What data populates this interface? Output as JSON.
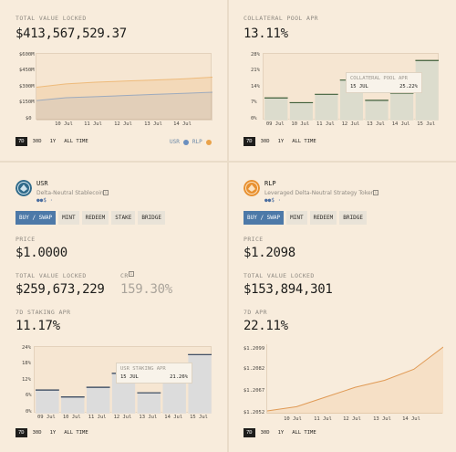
{
  "tvl": {
    "label": "TOTAL VALUE LOCKED",
    "value": "$413,567,529.37",
    "yticks": [
      "$600M",
      "$450M",
      "$300M",
      "$150M",
      "$0"
    ],
    "xticks": [
      "10 Jul",
      "11 Jul",
      "12 Jul",
      "13 Jul",
      "14 Jul"
    ],
    "legend": [
      "USR",
      "RLP"
    ],
    "periods": [
      "7D",
      "30D",
      "1Y",
      "ALL TIME"
    ],
    "colors": {
      "usr": "#6b8fbf",
      "rlp": "#e9a24a"
    }
  },
  "collateral": {
    "label": "COLLATERAL POOL APR",
    "value": "13.11%",
    "yticks": [
      "28%",
      "21%",
      "14%",
      "7%",
      "0%"
    ],
    "xticks": [
      "09 Jul",
      "10 Jul",
      "11 Jul",
      "12 Jul",
      "13 Jul",
      "14 Jul",
      "15 Jul"
    ],
    "tooltip": {
      "title": "COLLATERAL POOL APR",
      "date": "15 JUL",
      "value": "25.22%"
    },
    "periods": [
      "7D",
      "30D",
      "1Y",
      "ALL TIME"
    ]
  },
  "usr": {
    "name": "USR",
    "subtitle": "Delta-Neutral Stablecoin",
    "tabs": [
      "BUY / SWAP",
      "MINT",
      "REDEEM",
      "STAKE",
      "BRIDGE"
    ],
    "price_label": "PRICE",
    "price": "$1.0000",
    "tvl_label": "TOTAL VALUE LOCKED",
    "tvl": "$259,673,229",
    "cr_label": "CR",
    "cr": "159.30%",
    "apr_label": "7D STAKING APR",
    "apr": "11.17%",
    "yticks": [
      "24%",
      "18%",
      "12%",
      "6%",
      "0%"
    ],
    "xticks": [
      "09 Jul",
      "10 Jul",
      "11 Jul",
      "12 Jul",
      "13 Jul",
      "14 Jul",
      "15 Jul"
    ],
    "tooltip": {
      "title": "USR STAKING APR",
      "date": "15 JUL",
      "value": "21.26%"
    },
    "periods": [
      "7D",
      "30D",
      "1Y",
      "ALL TIME"
    ]
  },
  "rlp": {
    "name": "RLP",
    "subtitle": "Leveraged Delta-Neutral Strategy Token",
    "tabs": [
      "BUY / SWAP",
      "MINT",
      "REDEEM",
      "BRIDGE"
    ],
    "price_label": "PRICE",
    "price": "$1.2098",
    "tvl_label": "TOTAL VALUE LOCKED",
    "tvl": "$153,894,301",
    "apr_label": "7D APR",
    "apr": "22.11%",
    "yticks": [
      "$1.2099",
      "$1.2082",
      "$1.2067",
      "$1.2052"
    ],
    "xticks": [
      "10 Jul",
      "11 Jul",
      "12 Jul",
      "13 Jul",
      "14 Jul"
    ],
    "periods": [
      "7D",
      "30D",
      "1Y",
      "ALL TIME"
    ]
  },
  "chart_data": [
    {
      "type": "area",
      "title": "TOTAL VALUE LOCKED",
      "x": [
        "09 Jul",
        "10 Jul",
        "11 Jul",
        "12 Jul",
        "13 Jul",
        "14 Jul",
        "15 Jul"
      ],
      "series": [
        {
          "name": "USR",
          "values": [
            180,
            205,
            215,
            225,
            235,
            245,
            255
          ]
        },
        {
          "name": "RLP",
          "values": [
            300,
            330,
            345,
            355,
            365,
            375,
            390
          ]
        }
      ],
      "ylim": [
        0,
        600
      ]
    },
    {
      "type": "bar",
      "title": "COLLATERAL POOL APR",
      "categories": [
        "09 Jul",
        "10 Jul",
        "11 Jul",
        "12 Jul",
        "13 Jul",
        "14 Jul",
        "15 Jul"
      ],
      "values": [
        9.5,
        7.5,
        11,
        17,
        8.5,
        11.5,
        25.22
      ],
      "ylim": [
        0,
        28
      ]
    },
    {
      "type": "bar",
      "title": "USR STAKING APR",
      "categories": [
        "09 Jul",
        "10 Jul",
        "11 Jul",
        "12 Jul",
        "13 Jul",
        "14 Jul",
        "15 Jul"
      ],
      "values": [
        8.5,
        6,
        9.5,
        14.5,
        7.5,
        12.5,
        21.26
      ],
      "ylim": [
        0,
        24
      ]
    },
    {
      "type": "area",
      "title": "RLP PRICE",
      "x": [
        "09 Jul",
        "10 Jul",
        "11 Jul",
        "12 Jul",
        "13 Jul",
        "14 Jul",
        "15 Jul"
      ],
      "values": [
        1.2052,
        1.2055,
        1.2062,
        1.2069,
        1.2074,
        1.2082,
        1.2098
      ],
      "ylim": [
        1.205,
        1.21
      ]
    }
  ]
}
